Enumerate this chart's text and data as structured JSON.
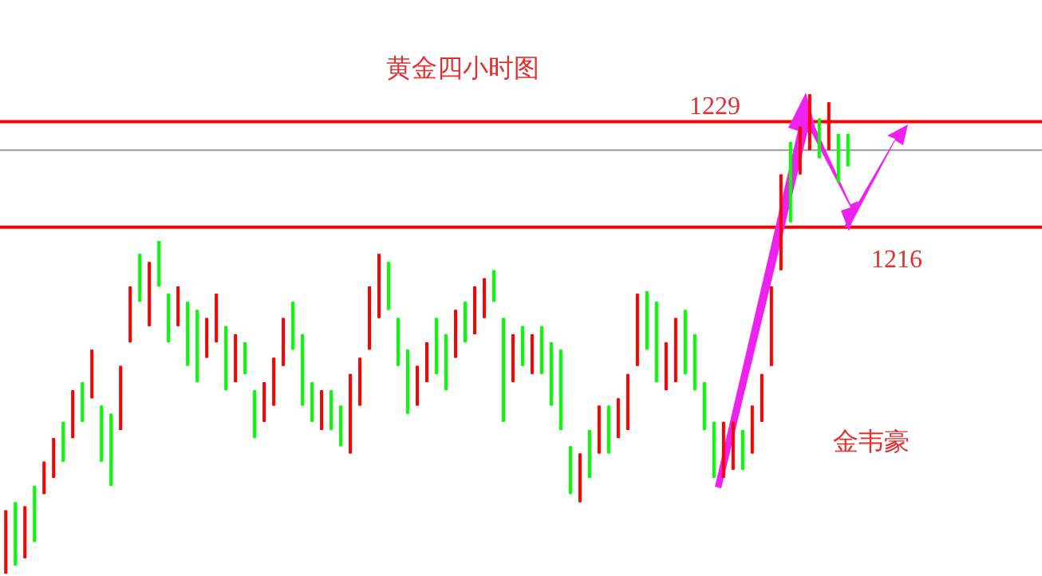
{
  "chart_data": {
    "type": "candlestick",
    "title": "黄金四小时图",
    "categories": [
      null,
      null,
      null,
      null,
      null,
      null,
      null,
      null,
      null,
      null,
      null,
      null,
      null,
      null,
      null,
      null,
      null,
      null,
      null,
      null,
      null,
      null,
      null,
      null,
      null,
      null,
      null,
      null,
      null,
      null,
      null,
      null,
      null,
      null,
      null,
      null,
      null,
      null,
      null,
      null,
      null,
      null,
      null,
      null,
      null,
      null,
      null,
      null,
      null,
      null,
      null,
      null,
      null,
      null,
      null,
      null,
      null,
      null,
      null,
      null,
      null,
      null,
      null,
      null,
      null,
      null,
      null,
      null,
      null,
      null,
      null,
      null,
      null,
      null,
      null,
      null,
      null,
      null,
      null,
      null,
      null,
      null,
      null,
      null,
      null,
      null,
      null,
      null,
      null
    ],
    "ohlc": [
      [
        1173.3,
        1181.1,
        1173.3,
        1181.1
      ],
      [
        1182.1,
        1182.1,
        1174.3,
        1174.3
      ],
      [
        1175.2,
        1181.6,
        1175.2,
        1181.6
      ],
      [
        1184.1,
        1184.1,
        1177.2,
        1177.2
      ],
      [
        1183.1,
        1187.1,
        1183.1,
        1187.1
      ],
      [
        1185.1,
        1190.0,
        1185.1,
        1190.0
      ],
      [
        1192.0,
        1192.0,
        1187.1,
        1187.1
      ],
      [
        1190.0,
        1195.9,
        1190.0,
        1195.9
      ],
      [
        1196.9,
        1196.9,
        1192.0,
        1192.0
      ],
      [
        1194.9,
        1200.9,
        1194.9,
        1200.9
      ],
      [
        1194.0,
        1194.0,
        1187.1,
        1187.1
      ],
      [
        1193.0,
        1193.0,
        1184.1,
        1184.1
      ],
      [
        1191.0,
        1198.9,
        1191.0,
        1198.9
      ],
      [
        1201.8,
        1208.7,
        1201.8,
        1208.7
      ],
      [
        1212.7,
        1212.7,
        1206.8,
        1206.8
      ],
      [
        1203.8,
        1211.7,
        1203.8,
        1211.7
      ],
      [
        1214.3,
        1214.3,
        1208.7,
        1208.7
      ],
      [
        1207.8,
        1207.8,
        1201.8,
        1201.8
      ],
      [
        1203.8,
        1208.7,
        1203.8,
        1208.7
      ],
      [
        1206.8,
        1206.8,
        1198.9,
        1198.9
      ],
      [
        1205.8,
        1205.8,
        1196.9,
        1196.9
      ],
      [
        1199.9,
        1204.8,
        1199.9,
        1204.8
      ],
      [
        1201.8,
        1207.8,
        1201.8,
        1207.8
      ],
      [
        1203.8,
        1203.8,
        1195.9,
        1195.9
      ],
      [
        1196.9,
        1202.8,
        1196.9,
        1202.8
      ],
      [
        1201.8,
        1201.8,
        1197.9,
        1197.9
      ],
      [
        1195.9,
        1195.9,
        1190.0,
        1190.0
      ],
      [
        1192.0,
        1196.9,
        1192.0,
        1196.9
      ],
      [
        1194.0,
        1199.9,
        1194.0,
        1199.9
      ],
      [
        1198.9,
        1204.8,
        1198.9,
        1204.8
      ],
      [
        1206.8,
        1206.8,
        1200.9,
        1200.9
      ],
      [
        1202.8,
        1202.8,
        1194.0,
        1194.0
      ],
      [
        1196.9,
        1196.9,
        1192.0,
        1192.0
      ],
      [
        1191.0,
        1195.9,
        1191.0,
        1195.9
      ],
      [
        1195.9,
        1195.9,
        1191.0,
        1191.0
      ],
      [
        1194.0,
        1194.0,
        1189.0,
        1189.0
      ],
      [
        1188.1,
        1197.9,
        1188.1,
        1197.9
      ],
      [
        1194.0,
        1199.9,
        1194.0,
        1199.9
      ],
      [
        1200.9,
        1208.7,
        1200.9,
        1208.7
      ],
      [
        1204.8,
        1212.7,
        1204.8,
        1212.7
      ],
      [
        1211.7,
        1211.7,
        1205.8,
        1205.8
      ],
      [
        1204.8,
        1204.8,
        1198.9,
        1198.9
      ],
      [
        1200.9,
        1200.9,
        1193.0,
        1193.0
      ],
      [
        1194.0,
        1198.9,
        1194.0,
        1198.9
      ],
      [
        1196.9,
        1201.8,
        1196.9,
        1201.8
      ],
      [
        1204.8,
        1204.8,
        1197.9,
        1197.9
      ],
      [
        1202.8,
        1202.8,
        1195.9,
        1195.9
      ],
      [
        1199.9,
        1205.8,
        1199.9,
        1205.8
      ],
      [
        1206.8,
        1206.8,
        1201.8,
        1201.8
      ],
      [
        1202.8,
        1208.7,
        1202.8,
        1208.7
      ],
      [
        1204.8,
        1209.7,
        1204.8,
        1209.7
      ],
      [
        1210.7,
        1210.7,
        1206.8,
        1206.8
      ],
      [
        1204.8,
        1204.8,
        1192.0,
        1192.0
      ],
      [
        1196.9,
        1202.8,
        1196.9,
        1202.8
      ],
      [
        1203.8,
        1203.8,
        1198.9,
        1198.9
      ],
      [
        1197.9,
        1202.8,
        1197.9,
        1202.8
      ],
      [
        1203.8,
        1203.8,
        1197.9,
        1197.9
      ],
      [
        1201.8,
        1201.8,
        1194.0,
        1194.0
      ],
      [
        1200.9,
        1200.9,
        1191.0,
        1191.0
      ],
      [
        1189.0,
        1189.0,
        1183.1,
        1183.1
      ],
      [
        1182.1,
        1188.1,
        1182.1,
        1188.1
      ],
      [
        1191.0,
        1191.0,
        1185.1,
        1185.1
      ],
      [
        1188.1,
        1194.0,
        1188.1,
        1194.0
      ],
      [
        1194.0,
        1194.0,
        1188.1,
        1188.1
      ],
      [
        1190.0,
        1194.9,
        1190.0,
        1194.9
      ],
      [
        1191.0,
        1197.9,
        1191.0,
        1197.9
      ],
      [
        1198.9,
        1207.8,
        1198.9,
        1207.8
      ],
      [
        1208.1,
        1208.1,
        1200.9,
        1200.9
      ],
      [
        1206.8,
        1206.8,
        1196.9,
        1196.9
      ],
      [
        1195.9,
        1201.8,
        1195.9,
        1201.8
      ],
      [
        1196.9,
        1204.8,
        1196.9,
        1204.8
      ],
      [
        1205.8,
        1205.8,
        1197.9,
        1197.9
      ],
      [
        1202.8,
        1202.8,
        1195.9,
        1195.9
      ],
      [
        1196.9,
        1196.9,
        1191.0,
        1191.0
      ],
      [
        1192.0,
        1192.0,
        1185.1,
        1185.1
      ],
      [
        1185.1,
        1192.0,
        1185.1,
        1192.0
      ],
      [
        1186.1,
        1192.0,
        1186.1,
        1192.0
      ],
      [
        1191.0,
        1191.0,
        1186.1,
        1186.1
      ],
      [
        1188.1,
        1194.0,
        1188.1,
        1194.0
      ],
      [
        1192.0,
        1197.9,
        1192.0,
        1197.9
      ],
      [
        1198.9,
        1208.7,
        1198.9,
        1208.7
      ],
      [
        1210.7,
        1222.5,
        1210.7,
        1222.5
      ],
      [
        1226.5,
        1226.5,
        1216.6,
        1216.6
      ],
      [
        1222.5,
        1228.4,
        1222.5,
        1228.4
      ],
      [
        1225.5,
        1232.4,
        1225.5,
        1232.4
      ],
      [
        1229.4,
        1229.4,
        1224.5,
        1224.5
      ],
      [
        1225.5,
        1231.4,
        1225.5,
        1231.4
      ],
      [
        1227.5,
        1227.5,
        1221.5,
        1221.5
      ],
      [
        1227.5,
        1227.5,
        1223.5,
        1223.5
      ]
    ],
    "ylim": [
      1173,
      1244
    ],
    "tick_labels": false,
    "ref_lines": [
      {
        "axis": "y",
        "value": 1229,
        "label": "1229",
        "color": "#ff0000"
      },
      {
        "axis": "y",
        "value": 1225.5,
        "label": null,
        "color": "#999999"
      },
      {
        "axis": "y",
        "value": 1216,
        "label": "1216",
        "color": "#ff0000"
      }
    ],
    "annotations": [
      "金韦豪"
    ]
  }
}
